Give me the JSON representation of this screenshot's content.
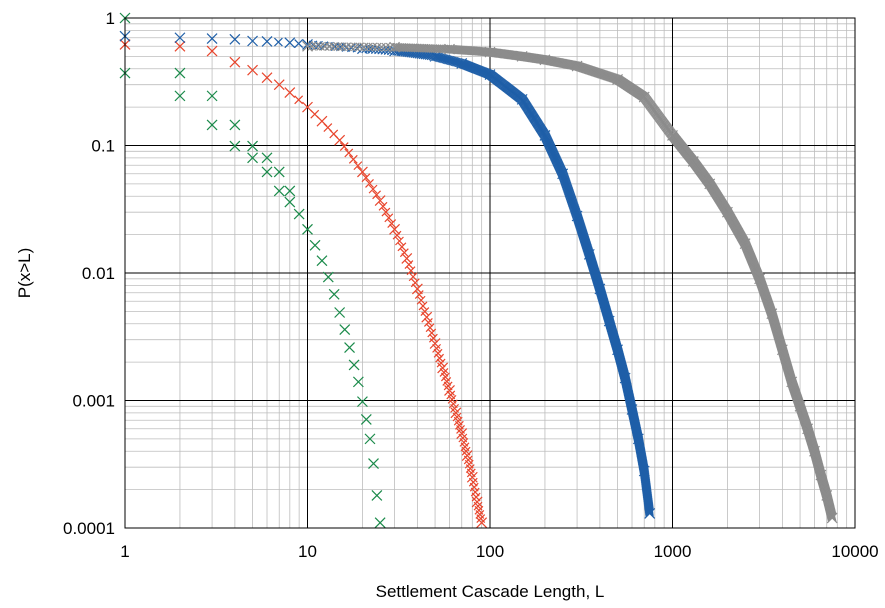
{
  "chart_data": {
    "type": "scatter",
    "xlabel": "Settlement Cascade Length, L",
    "ylabel": "P(x>L)",
    "xscale": "log",
    "yscale": "log",
    "xlim": [
      1,
      10000
    ],
    "ylim": [
      0.0001,
      1
    ],
    "grid": true,
    "legend": "none",
    "marker": "x",
    "x_ticks": [
      {
        "value": 1,
        "label": "1"
      },
      {
        "value": 10,
        "label": "10"
      },
      {
        "value": 100,
        "label": "100"
      },
      {
        "value": 1000,
        "label": "1000"
      },
      {
        "value": 10000,
        "label": "10000"
      }
    ],
    "y_ticks": [
      {
        "value": 1,
        "label": "1"
      },
      {
        "value": 0.1,
        "label": "0.1"
      },
      {
        "value": 0.01,
        "label": "0.01"
      },
      {
        "value": 0.001,
        "label": "0.001"
      },
      {
        "value": 0.0001,
        "label": "0.0001"
      }
    ],
    "series": [
      {
        "color": "#1a8a4a",
        "points": [
          [
            1,
            1
          ],
          [
            1,
            0.37
          ],
          [
            2,
            0.37
          ],
          [
            2,
            0.245
          ],
          [
            3,
            0.245
          ],
          [
            3,
            0.145
          ],
          [
            4,
            0.145
          ],
          [
            4,
            0.099
          ],
          [
            5,
            0.099
          ],
          [
            5,
            0.08
          ],
          [
            6,
            0.08
          ],
          [
            6,
            0.062
          ],
          [
            7,
            0.062
          ],
          [
            7,
            0.044
          ],
          [
            8,
            0.044
          ],
          [
            8,
            0.036
          ],
          [
            9,
            0.029
          ],
          [
            10,
            0.022
          ],
          [
            11,
            0.0165
          ],
          [
            12,
            0.0125
          ],
          [
            13,
            0.0093
          ],
          [
            14,
            0.0068
          ],
          [
            15,
            0.0049
          ],
          [
            16,
            0.0036
          ],
          [
            17,
            0.0026
          ],
          [
            18,
            0.0019
          ],
          [
            19,
            0.0014
          ],
          [
            20,
            0.00098
          ],
          [
            21,
            0.00071
          ],
          [
            22,
            0.0005
          ],
          [
            23,
            0.00032
          ],
          [
            24,
            0.00018
          ],
          [
            25,
            0.00011
          ]
        ]
      },
      {
        "color": "#e8452c",
        "points": [
          [
            1,
            0.62
          ],
          [
            2,
            0.6
          ],
          [
            3,
            0.55
          ],
          [
            4,
            0.45
          ],
          [
            5,
            0.39
          ],
          [
            6,
            0.34
          ],
          [
            7,
            0.3
          ],
          [
            8,
            0.26
          ],
          [
            10,
            0.2
          ],
          [
            12,
            0.155
          ],
          [
            15,
            0.11
          ],
          [
            20,
            0.062
          ],
          [
            25,
            0.037
          ],
          [
            30,
            0.022
          ],
          [
            35,
            0.013
          ],
          [
            40,
            0.0075
          ],
          [
            45,
            0.0045
          ],
          [
            50,
            0.0028
          ],
          [
            55,
            0.0018
          ],
          [
            60,
            0.0012
          ],
          [
            65,
            0.0008
          ],
          [
            70,
            0.00055
          ],
          [
            75,
            0.00037
          ],
          [
            80,
            0.00025
          ],
          [
            85,
            0.00016
          ],
          [
            90,
            0.00011
          ]
        ]
      },
      {
        "color": "#1f5fa8",
        "points": [
          [
            1,
            0.72
          ],
          [
            2,
            0.7
          ],
          [
            3,
            0.69
          ],
          [
            4,
            0.68
          ],
          [
            5,
            0.66
          ],
          [
            6,
            0.655
          ],
          [
            8,
            0.64
          ],
          [
            10,
            0.62
          ],
          [
            20,
            0.575
          ],
          [
            30,
            0.55
          ],
          [
            50,
            0.5
          ],
          [
            70,
            0.44
          ],
          [
            100,
            0.36
          ],
          [
            150,
            0.23
          ],
          [
            200,
            0.12
          ],
          [
            250,
            0.06
          ],
          [
            300,
            0.028
          ],
          [
            350,
            0.014
          ],
          [
            400,
            0.0075
          ],
          [
            450,
            0.0042
          ],
          [
            500,
            0.0025
          ],
          [
            550,
            0.0015
          ],
          [
            600,
            0.00085
          ],
          [
            650,
            0.0005
          ],
          [
            700,
            0.00028
          ],
          [
            750,
            0.00013
          ]
        ]
      },
      {
        "color": "#8c8c8c",
        "points": [
          [
            10,
            0.6
          ],
          [
            30,
            0.59
          ],
          [
            60,
            0.57
          ],
          [
            100,
            0.54
          ],
          [
            150,
            0.5
          ],
          [
            200,
            0.47
          ],
          [
            300,
            0.42
          ],
          [
            500,
            0.33
          ],
          [
            700,
            0.24
          ],
          [
            1000,
            0.12
          ],
          [
            1300,
            0.075
          ],
          [
            1600,
            0.05
          ],
          [
            2000,
            0.03
          ],
          [
            2500,
            0.017
          ],
          [
            3000,
            0.009
          ],
          [
            3500,
            0.0048
          ],
          [
            4000,
            0.0025
          ],
          [
            4500,
            0.0014
          ],
          [
            5000,
            0.0009
          ],
          [
            5500,
            0.0006
          ],
          [
            6000,
            0.0004
          ],
          [
            6500,
            0.00026
          ],
          [
            7000,
            0.00018
          ],
          [
            7500,
            0.00012
          ]
        ]
      }
    ]
  }
}
